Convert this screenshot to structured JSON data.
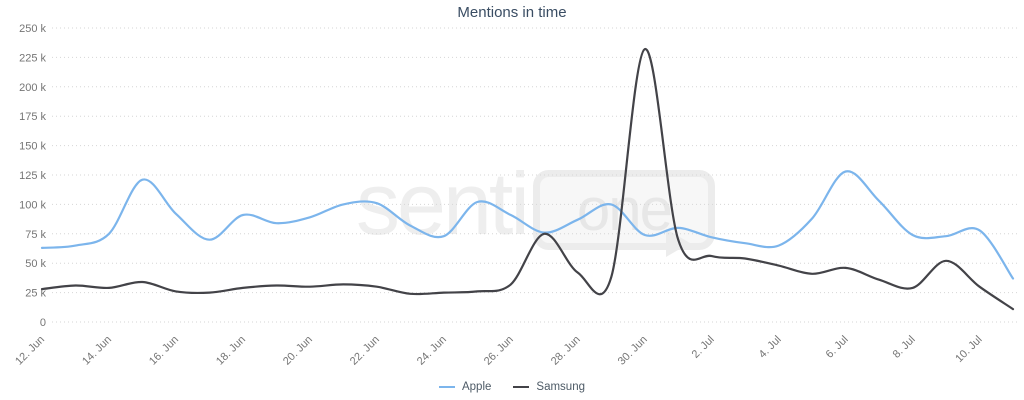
{
  "watermark": {
    "prefix": "senti",
    "suffix": "one"
  },
  "chart_data": {
    "type": "line",
    "title": "Mentions in time",
    "xlabel": "",
    "ylabel": "",
    "values_unit": "thousands of mentions",
    "ylim": [
      0,
      250
    ],
    "grid": "horizontal dotted",
    "legend_position": "bottom center",
    "yticks": [
      {
        "v": 0,
        "label": "0"
      },
      {
        "v": 25,
        "label": "25 k"
      },
      {
        "v": 50,
        "label": "50 k"
      },
      {
        "v": 75,
        "label": "75 k"
      },
      {
        "v": 100,
        "label": "100 k"
      },
      {
        "v": 125,
        "label": "125 k"
      },
      {
        "v": 150,
        "label": "150 k"
      },
      {
        "v": 175,
        "label": "175 k"
      },
      {
        "v": 200,
        "label": "200 k"
      },
      {
        "v": 225,
        "label": "225 k"
      },
      {
        "v": 250,
        "label": "250 k"
      }
    ],
    "categories": [
      "12. Jun",
      "13. Jun",
      "14. Jun",
      "15. Jun",
      "16. Jun",
      "17. Jun",
      "18. Jun",
      "19. Jun",
      "20. Jun",
      "21. Jun",
      "22. Jun",
      "23. Jun",
      "24. Jun",
      "25. Jun",
      "26. Jun",
      "27. Jun",
      "28. Jun",
      "29. Jun",
      "30. Jun",
      "1. Jul",
      "2. Jul",
      "3. Jul",
      "4. Jul",
      "5. Jul",
      "6. Jul",
      "7. Jul",
      "8. Jul",
      "9. Jul",
      "10. Jul",
      "11. Jul"
    ],
    "tick_every": 2,
    "series": [
      {
        "name": "Apple",
        "color": "#7cb5ec",
        "values": [
          63,
          65,
          75,
          121,
          92,
          70,
          91,
          84,
          89,
          100,
          101,
          82,
          73,
          102,
          91,
          76,
          87,
          100,
          74,
          80,
          72,
          67,
          65,
          88,
          128,
          103,
          74,
          73,
          78,
          37
        ]
      },
      {
        "name": "Samsung",
        "color": "#434348",
        "values": [
          28,
          31,
          29,
          34,
          26,
          25,
          29,
          31,
          30,
          32,
          30,
          24,
          25,
          26,
          32,
          75,
          42,
          38,
          232,
          70,
          56,
          54,
          48,
          41,
          46,
          36,
          29,
          52,
          30,
          11
        ]
      }
    ]
  },
  "colors": {
    "grid": "#d6d6d6",
    "axis_label": "#757575",
    "title": "#3a4d63",
    "legend_text": "#4d5a66",
    "watermark": "#eeeeee"
  }
}
